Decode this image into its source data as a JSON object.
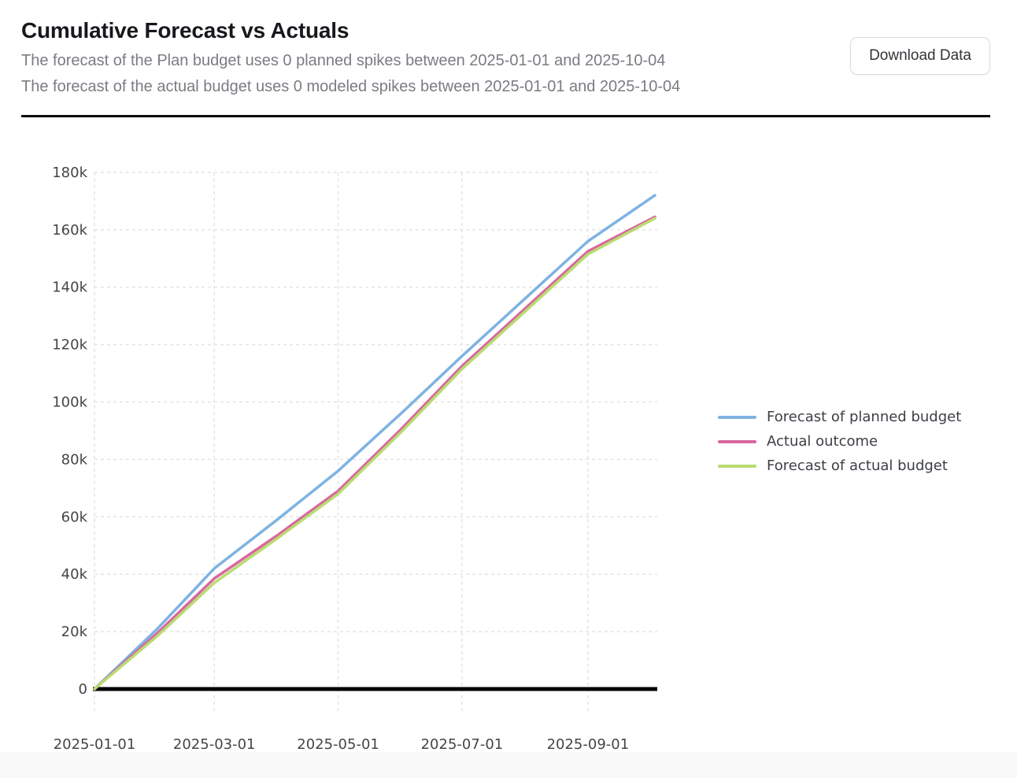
{
  "header": {
    "title": "Cumulative Forecast vs Actuals",
    "subtitle_line1": "The forecast of the Plan budget uses 0 planned spikes between 2025-01-01 and 2025-10-04",
    "subtitle_line2": "The forecast of the actual budget uses 0 modeled spikes between 2025-01-01 and 2025-10-04",
    "download_button_label": "Download Data"
  },
  "chart_data": {
    "type": "line",
    "title": "Cumulative Forecast vs Actuals",
    "x": [
      "2025-01-01",
      "2025-02-01",
      "2025-03-01",
      "2025-04-01",
      "2025-05-01",
      "2025-06-01",
      "2025-07-01",
      "2025-08-01",
      "2025-09-01",
      "2025-10-04"
    ],
    "series": [
      {
        "name": "Forecast of planned budget",
        "color": "#7eb3e2",
        "values": [
          0,
          21000,
          42000,
          59000,
          76000,
          96000,
          116000,
          136000,
          156000,
          172000
        ]
      },
      {
        "name": "Actual outcome",
        "color": "#d9669f",
        "values": [
          0,
          19500,
          38500,
          53500,
          69000,
          90500,
          112500,
          132500,
          152500,
          164500
        ]
      },
      {
        "name": "Forecast of actual budget",
        "color": "#b9dc72",
        "values": [
          0,
          18500,
          37000,
          52500,
          68000,
          89500,
          111500,
          131500,
          151500,
          164000
        ]
      }
    ],
    "x_ticks": [
      "2025-01-01",
      "2025-03-01",
      "2025-05-01",
      "2025-07-01",
      "2025-09-01"
    ],
    "y_ticks": [
      0,
      20000,
      40000,
      60000,
      80000,
      100000,
      120000,
      140000,
      160000,
      180000
    ],
    "y_tick_labels": [
      "0",
      "20k",
      "40k",
      "60k",
      "80k",
      "100k",
      "120k",
      "140k",
      "160k",
      "180k"
    ],
    "xlabel": "",
    "ylabel": "",
    "ylim": [
      0,
      190000
    ],
    "grid": "dashed",
    "grid_color": "#e4e4e4",
    "zero_line": true,
    "zero_line_color": "#000000",
    "legend_position": "right"
  }
}
